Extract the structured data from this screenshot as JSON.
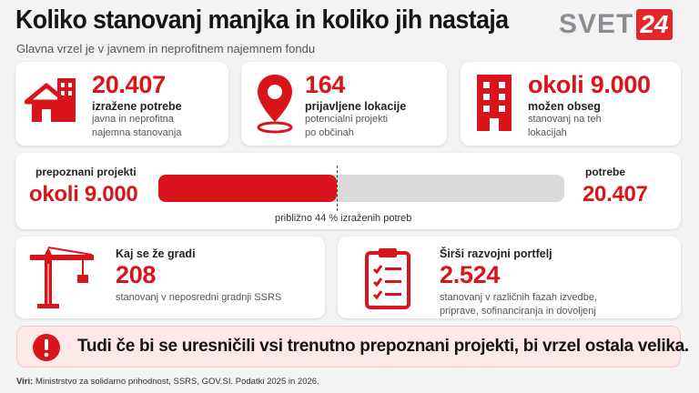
{
  "header": {
    "title": "Koliko stanovanj manjka in koliko jih nastaja",
    "subtitle": "Glavna vrzel je v javnem in neprofitnem najemnem fondu",
    "logo_text": "SVET",
    "logo_number": "24"
  },
  "stats": [
    {
      "value": "20.407",
      "label": "izražene potrebe",
      "desc1": "javna in neprofitna",
      "desc2": "najemna stanovanja",
      "icon": "houses-icon"
    },
    {
      "value": "164",
      "label": "prijavljene lokacije",
      "desc1": "potencialni projekti",
      "desc2": "po občinah",
      "icon": "location-pin-icon"
    },
    {
      "value": "okoli 9.000",
      "label": "možen obseg",
      "desc1": "stanovanj na teh",
      "desc2": "lokacijah",
      "icon": "building-icon"
    }
  ],
  "comparison": {
    "left_label": "prepoznani projekti",
    "left_value": "okoli 9.000",
    "right_label": "potrebe",
    "right_value": "20.407",
    "caption": "približno 44 % izraženih potreb",
    "fill_fraction": 0.44,
    "colors": {
      "fill": "#d9141b",
      "track": "#dadada"
    }
  },
  "construction": {
    "label": "Kaj se že gradi",
    "value": "208",
    "desc": "stanovanj v neposredni gradnji SSRS",
    "icon": "crane-icon"
  },
  "portfolio": {
    "label": "Širši razvojni portfelj",
    "value": "2.524",
    "desc1": "stanovanj v različnih fazah izvedbe,",
    "desc2": "priprave, sofinanciranja in dovoljenj",
    "icon": "clipboard-checklist-icon"
  },
  "alert": {
    "icon": "exclamation-icon",
    "text": "Tudi če bi se uresničili vsi trenutno prepoznani projekti, bi vrzel ostala velika."
  },
  "sources": {
    "prefix": "Viri:",
    "text": "Ministrstvo za solidarno prihodnost, SSRS, GOV.SI. Podatki 2025 in 2026."
  },
  "accent_color": "#d9141b"
}
